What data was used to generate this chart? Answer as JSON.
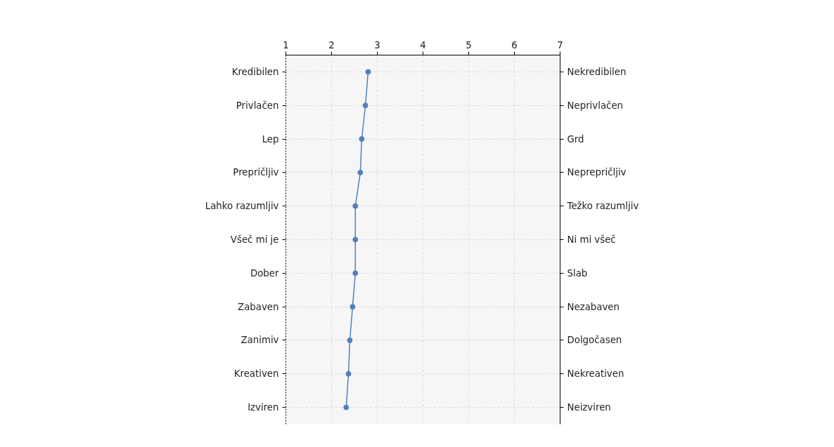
{
  "chart_data": {
    "type": "line",
    "orientation": "horizontal",
    "categories": [
      "Kredibilen",
      "Privlačen",
      "Lep",
      "Prepričljiv",
      "Lahko razumljiv",
      "Všeč mi je",
      "Dober",
      "Zabaven",
      "Zanimiv",
      "Kreativen",
      "Izviren"
    ],
    "y2_categories": [
      "Nekredibilen",
      "Neprivlačen",
      "Grd",
      "Neprepričljiv",
      "Težko razumljiv",
      "Ni mi všeč",
      "Slab",
      "Nezabaven",
      "Dolgočasen",
      "Nekreativen",
      "Neizviren"
    ],
    "series": [
      {
        "color": "#4f81bd",
        "values": [
          2.8,
          2.74,
          2.66,
          2.63,
          2.52,
          2.52,
          2.52,
          2.46,
          2.4,
          2.37,
          2.32
        ]
      }
    ],
    "xlim": [
      1,
      7
    ],
    "xticks": [
      1,
      2,
      3,
      4,
      5,
      6,
      7
    ],
    "grid": true,
    "marker": "circle",
    "line_style": "solid"
  }
}
